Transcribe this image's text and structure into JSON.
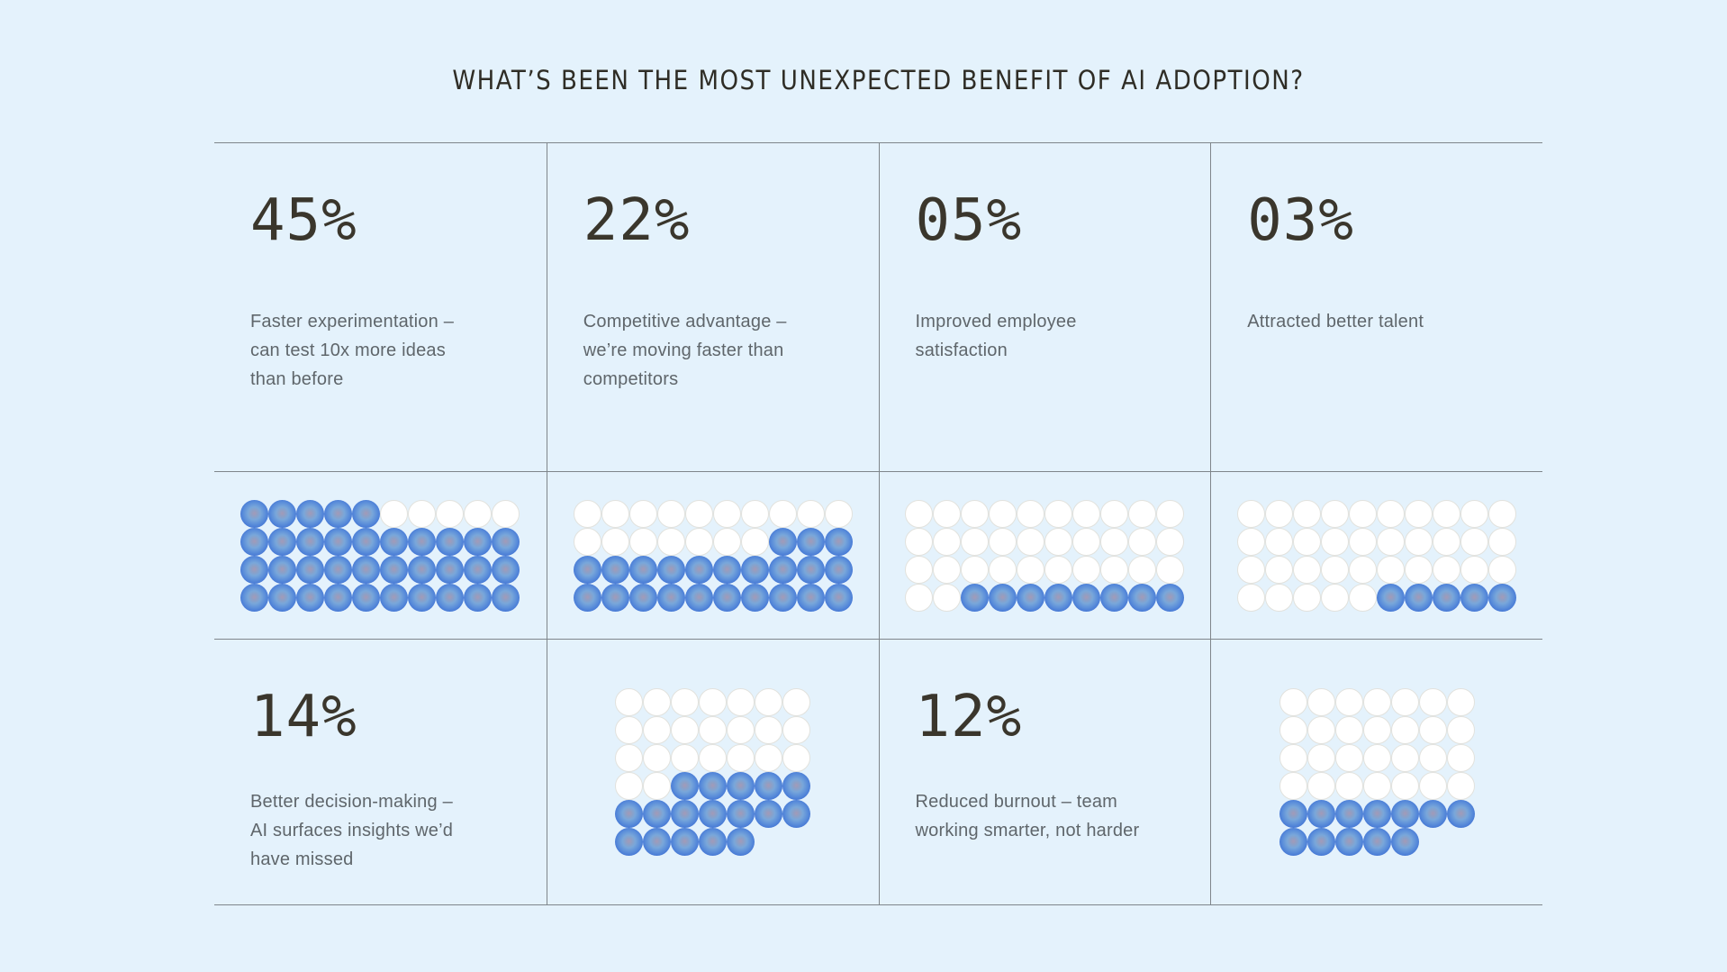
{
  "title": "WHAT’S BEEN THE MOST UNEXPECTED BENEFIT OF AI ADOPTION?",
  "colors": {
    "background": "#e4f2fc",
    "grid_line": "#7f868b",
    "accent_blue": "#3c6ed6",
    "dot_white": "#ffffff",
    "number_text": "#3a362c",
    "description_text": "#5f666b",
    "title_text": "#2f2d26"
  },
  "stats": [
    {
      "value": "45%",
      "description": "Faster experimentation –\ncan test 10x more ideas\nthan before"
    },
    {
      "value": "22%",
      "description": "Competitive advantage –\nwe’re moving faster than\ncompetitors"
    },
    {
      "value": "05%",
      "description": "Improved employee\nsatisfaction"
    },
    {
      "value": "03%",
      "description": "Attracted better talent"
    },
    {
      "value": "14%",
      "description": "Better decision-making –\nAI surfaces insights we’d\nhave missed"
    },
    {
      "value": "12%",
      "description": "Reduced burnout – team\nworking smarter, not harder"
    }
  ],
  "dot_grids": [
    {
      "label": "faster-experimentation-dots",
      "columns": 10,
      "pattern": [
        "1111100000",
        "1111111111",
        "1111111111",
        "1111111111"
      ]
    },
    {
      "label": "competitive-advantage-dots",
      "columns": 10,
      "pattern": [
        "0000000000",
        "0000000111",
        "1111111111",
        "1111111111"
      ]
    },
    {
      "label": "employee-satisfaction-dots",
      "columns": 10,
      "pattern": [
        "0000000000",
        "0000000000",
        "0000000000",
        "0011111111"
      ]
    },
    {
      "label": "better-talent-dots",
      "columns": 10,
      "pattern": [
        "0000000000",
        "0000000000",
        "0000000000",
        "0000011111"
      ]
    },
    {
      "label": "better-decision-making-dots",
      "columns": 7,
      "pattern": [
        "0000000",
        "0000000",
        "0000000",
        "0011111",
        "1111111",
        "11111xx"
      ]
    },
    {
      "label": "reduced-burnout-dots",
      "columns": 7,
      "pattern": [
        "0000000",
        "0000000",
        "0000000",
        "0000000",
        "1111111",
        "11111xx"
      ]
    }
  ],
  "chart_data": {
    "type": "pictograph",
    "title": "WHAT’S BEEN THE MOST UNEXPECTED BENEFIT OF AI ADOPTION?",
    "unit": "%",
    "categories": [
      "Faster experimentation – can test 10x more ideas than before",
      "Competitive advantage – we’re moving faster than competitors",
      "Improved employee satisfaction",
      "Attracted better talent",
      "Better decision-making – AI surfaces insights we’d have missed",
      "Reduced burnout – team working smarter, not harder"
    ],
    "values": [
      45,
      22,
      5,
      3,
      14,
      12
    ],
    "filled_dot_counts": [
      35,
      23,
      8,
      5,
      17,
      12
    ],
    "legend_position": "none",
    "grid": "off"
  }
}
